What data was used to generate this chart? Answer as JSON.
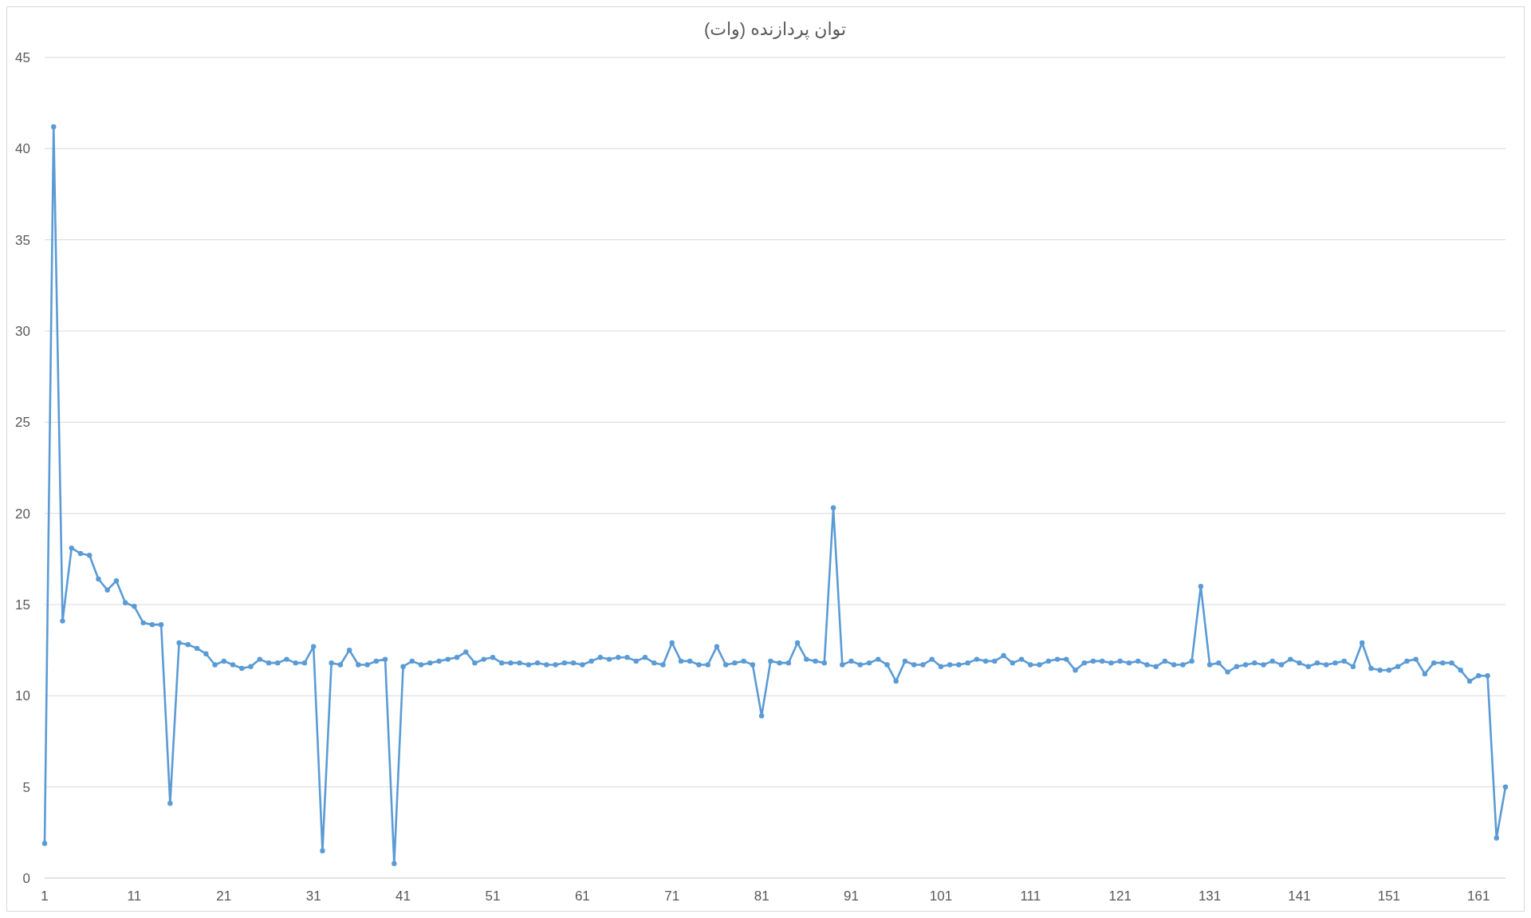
{
  "chart_data": {
    "type": "line",
    "title": "توان پردازنده (وات)",
    "x": [
      1,
      2,
      3,
      4,
      5,
      6,
      7,
      8,
      9,
      10,
      11,
      12,
      13,
      14,
      15,
      16,
      17,
      18,
      19,
      20,
      21,
      22,
      23,
      24,
      25,
      26,
      27,
      28,
      29,
      30,
      31,
      32,
      33,
      34,
      35,
      36,
      37,
      38,
      39,
      40,
      41,
      42,
      43,
      44,
      45,
      46,
      47,
      48,
      49,
      50,
      51,
      52,
      53,
      54,
      55,
      56,
      57,
      58,
      59,
      60,
      61,
      62,
      63,
      64,
      65,
      66,
      67,
      68,
      69,
      70,
      71,
      72,
      73,
      74,
      75,
      76,
      77,
      78,
      79,
      80,
      81,
      82,
      83,
      84,
      85,
      86,
      87,
      88,
      89,
      90,
      91,
      92,
      93,
      94,
      95,
      96,
      97,
      98,
      99,
      100,
      101,
      102,
      103,
      104,
      105,
      106,
      107,
      108,
      109,
      110,
      111,
      112,
      113,
      114,
      115,
      116,
      117,
      118,
      119,
      120,
      121,
      122,
      123,
      124,
      125,
      126,
      127,
      128,
      129,
      130,
      131,
      132,
      133,
      134,
      135,
      136,
      137,
      138,
      139,
      140,
      141,
      142,
      143,
      144,
      145,
      146,
      147,
      148,
      149,
      150,
      151,
      152,
      153,
      154,
      155,
      156,
      157,
      158,
      159,
      160,
      161,
      162,
      163,
      164
    ],
    "series": [
      {
        "color": "#5b9bd5",
        "values": [
          1.9,
          41.2,
          14.1,
          18.1,
          17.8,
          17.7,
          16.4,
          15.8,
          16.3,
          15.1,
          14.9,
          14.0,
          13.9,
          13.9,
          4.1,
          12.9,
          12.8,
          12.6,
          12.3,
          11.7,
          11.9,
          11.7,
          11.5,
          11.6,
          12.0,
          11.8,
          11.8,
          12.0,
          11.8,
          11.8,
          12.7,
          1.5,
          11.8,
          11.7,
          12.5,
          11.7,
          11.7,
          11.9,
          12.0,
          0.8,
          11.6,
          11.9,
          11.7,
          11.8,
          11.9,
          12.0,
          12.1,
          12.4,
          11.8,
          12.0,
          12.1,
          11.8,
          11.8,
          11.8,
          11.7,
          11.8,
          11.7,
          11.7,
          11.8,
          11.8,
          11.7,
          11.9,
          12.1,
          12.0,
          12.1,
          12.1,
          11.9,
          12.1,
          11.8,
          11.7,
          12.9,
          11.9,
          11.9,
          11.7,
          11.7,
          12.7,
          11.7,
          11.8,
          11.9,
          11.7,
          8.9,
          11.9,
          11.8,
          11.8,
          12.9,
          12.0,
          11.9,
          11.8,
          20.3,
          11.7,
          11.9,
          11.7,
          11.8,
          12.0,
          11.7,
          10.8,
          11.9,
          11.7,
          11.7,
          12.0,
          11.6,
          11.7,
          11.7,
          11.8,
          12.0,
          11.9,
          11.9,
          12.2,
          11.8,
          12.0,
          11.7,
          11.7,
          11.9,
          12.0,
          12.0,
          11.4,
          11.8,
          11.9,
          11.9,
          11.8,
          11.9,
          11.8,
          11.9,
          11.7,
          11.6,
          11.9,
          11.7,
          11.7,
          11.9,
          16.0,
          11.7,
          11.8,
          11.3,
          11.6,
          11.7,
          11.8,
          11.7,
          11.9,
          11.7,
          12.0,
          11.8,
          11.6,
          11.8,
          11.7,
          11.8,
          11.9,
          11.6,
          12.9,
          11.5,
          11.4,
          11.4,
          11.6,
          11.9,
          12.0,
          11.2,
          11.8,
          11.8,
          11.8,
          11.4,
          10.8,
          11.1,
          11.1,
          2.2,
          5.0
        ]
      }
    ],
    "xlim": [
      1,
      164
    ],
    "xticks": [
      1,
      11,
      21,
      31,
      41,
      51,
      61,
      71,
      81,
      91,
      101,
      111,
      121,
      131,
      141,
      151,
      161
    ],
    "ylim": [
      0,
      45
    ],
    "yticks": [
      0,
      5,
      10,
      15,
      20,
      25,
      30,
      35,
      40,
      45
    ],
    "grid": "y",
    "marker": "circle",
    "line_style": "solid"
  }
}
